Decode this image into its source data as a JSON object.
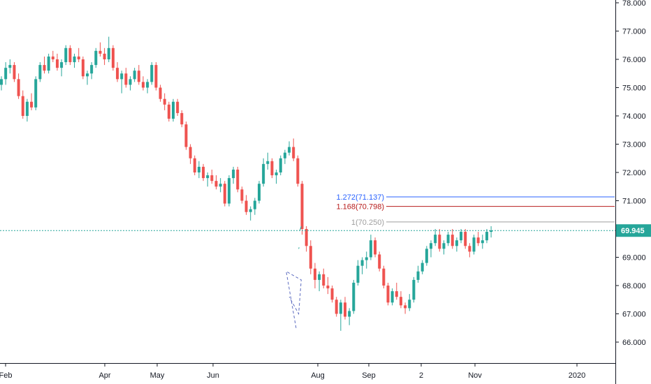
{
  "chart_data": {
    "type": "candlestick",
    "title": "",
    "xlabel": "",
    "ylabel": "",
    "ylim": [
      65.35,
      78.1
    ],
    "y_ticks": [
      "66.000",
      "67.000",
      "68.000",
      "69.000",
      "70.000",
      "71.000",
      "72.000",
      "73.000",
      "74.000",
      "75.000",
      "76.000",
      "77.000",
      "78.000"
    ],
    "x_ticks": [
      "Feb",
      "Apr",
      "May",
      "Jun",
      "Aug",
      "Sep",
      "2",
      "Nov",
      "2020"
    ],
    "current_price": "69.945",
    "current_price_value": 69.945,
    "grid": false,
    "colors": {
      "up": "#26a69a",
      "down": "#ef5350",
      "price_line": "#26a69a"
    },
    "fib_levels": [
      {
        "label": "1.272(71.137)",
        "value": 71.137,
        "color": "#2962ff"
      },
      {
        "label": "1.168(70.798)",
        "value": 70.798,
        "color": "#b71c1c"
      },
      {
        "label": "1(70.250)",
        "value": 70.25,
        "color": "#9e9e9e"
      }
    ],
    "pattern_lines": [
      {
        "style": "dashed",
        "points": [
          [
            68.6,
            66.5
          ],
          [
            66.3,
            68.5
          ],
          [
            69.8,
            68.2
          ],
          [
            69.2,
            67.0
          ],
          [
            67.0,
            67.6
          ]
        ]
      },
      {
        "style": "solid",
        "points": [
          [
            69.5,
            69.95
          ],
          [
            69.8,
            70.1
          ]
        ]
      },
      {
        "style": "solid",
        "points": [
          [
            69.2,
            69.3
          ],
          [
            69.3,
            69.35
          ]
        ]
      }
    ],
    "series": [
      {
        "values": [
          [
            75.1,
            75.4,
            74.9,
            75.3
          ],
          [
            75.3,
            75.9,
            75.1,
            75.7
          ],
          [
            75.7,
            76.0,
            75.5,
            75.8
          ],
          [
            75.8,
            75.9,
            75.2,
            75.3
          ],
          [
            75.3,
            75.5,
            74.6,
            74.7
          ],
          [
            74.7,
            74.9,
            73.9,
            74.0
          ],
          [
            74.0,
            74.6,
            73.8,
            74.5
          ],
          [
            74.5,
            74.8,
            74.2,
            74.3
          ],
          [
            74.3,
            75.4,
            74.2,
            75.3
          ],
          [
            75.3,
            75.9,
            75.2,
            75.8
          ],
          [
            75.8,
            76.1,
            75.5,
            75.6
          ],
          [
            75.6,
            76.2,
            75.5,
            76.1
          ],
          [
            76.1,
            76.3,
            75.9,
            76.0
          ],
          [
            76.0,
            76.2,
            75.6,
            75.7
          ],
          [
            75.7,
            76.0,
            75.4,
            75.9
          ],
          [
            75.9,
            76.5,
            75.8,
            76.4
          ],
          [
            76.4,
            76.5,
            75.8,
            75.9
          ],
          [
            75.9,
            76.2,
            75.7,
            76.1
          ],
          [
            76.1,
            76.4,
            75.9,
            76.0
          ],
          [
            76.0,
            76.1,
            75.3,
            75.4
          ],
          [
            75.4,
            75.6,
            75.1,
            75.5
          ],
          [
            75.5,
            75.9,
            75.3,
            75.8
          ],
          [
            75.8,
            76.4,
            75.7,
            76.3
          ],
          [
            76.3,
            76.6,
            76.1,
            76.2
          ],
          [
            76.2,
            76.4,
            75.8,
            76.0
          ],
          [
            76.0,
            76.8,
            75.9,
            76.4
          ],
          [
            76.4,
            76.5,
            75.6,
            75.7
          ],
          [
            75.7,
            75.9,
            75.2,
            75.3
          ],
          [
            75.3,
            75.6,
            74.8,
            75.5
          ],
          [
            75.5,
            75.7,
            75.0,
            75.1
          ],
          [
            75.1,
            75.4,
            74.9,
            75.3
          ],
          [
            75.3,
            75.7,
            75.2,
            75.6
          ],
          [
            75.6,
            75.8,
            75.1,
            75.2
          ],
          [
            75.2,
            75.4,
            74.9,
            75.0
          ],
          [
            75.0,
            75.3,
            74.8,
            75.2
          ],
          [
            75.2,
            75.9,
            75.1,
            75.8
          ],
          [
            75.8,
            75.9,
            74.9,
            75.0
          ],
          [
            75.0,
            75.1,
            74.5,
            74.6
          ],
          [
            74.6,
            74.8,
            74.2,
            74.4
          ],
          [
            74.4,
            74.5,
            73.8,
            73.9
          ],
          [
            73.9,
            74.6,
            73.8,
            74.5
          ],
          [
            74.5,
            74.6,
            74.0,
            74.1
          ],
          [
            74.1,
            74.2,
            73.6,
            73.7
          ],
          [
            73.7,
            73.8,
            72.8,
            72.9
          ],
          [
            72.9,
            73.0,
            72.3,
            72.5
          ],
          [
            72.5,
            72.6,
            71.9,
            72.0
          ],
          [
            72.0,
            72.4,
            71.8,
            72.2
          ],
          [
            72.2,
            72.3,
            71.7,
            71.8
          ],
          [
            71.8,
            72.0,
            71.5,
            71.9
          ],
          [
            71.9,
            72.1,
            71.6,
            71.7
          ],
          [
            71.7,
            71.9,
            71.4,
            71.5
          ],
          [
            71.5,
            71.8,
            71.3,
            71.6
          ],
          [
            71.6,
            71.7,
            70.8,
            70.9
          ],
          [
            70.9,
            71.9,
            70.8,
            71.8
          ],
          [
            71.8,
            72.2,
            71.6,
            72.1
          ],
          [
            72.1,
            72.2,
            71.3,
            71.4
          ],
          [
            71.4,
            71.5,
            70.9,
            71.0
          ],
          [
            71.0,
            71.2,
            70.5,
            70.6
          ],
          [
            70.6,
            70.8,
            70.3,
            70.7
          ],
          [
            70.7,
            71.1,
            70.5,
            71.0
          ],
          [
            71.0,
            71.7,
            70.9,
            71.6
          ],
          [
            71.6,
            72.5,
            71.5,
            72.3
          ],
          [
            72.3,
            72.7,
            72.1,
            72.4
          ],
          [
            72.4,
            72.5,
            71.8,
            71.9
          ],
          [
            71.9,
            72.1,
            71.6,
            72.0
          ],
          [
            72.0,
            72.6,
            71.9,
            72.5
          ],
          [
            72.5,
            72.8,
            72.3,
            72.7
          ],
          [
            72.7,
            73.1,
            72.6,
            72.9
          ],
          [
            72.9,
            73.2,
            72.4,
            72.5
          ],
          [
            72.5,
            72.6,
            71.5,
            71.6
          ],
          [
            71.6,
            71.7,
            69.8,
            70.0
          ],
          [
            70.0,
            70.1,
            69.2,
            69.4
          ],
          [
            69.4,
            69.6,
            68.4,
            68.6
          ],
          [
            68.6,
            68.8,
            67.9,
            68.2
          ],
          [
            68.2,
            68.5,
            67.8,
            68.4
          ],
          [
            68.4,
            68.6,
            67.9,
            68.0
          ],
          [
            68.0,
            68.3,
            67.7,
            67.9
          ],
          [
            67.9,
            68.0,
            67.4,
            67.5
          ],
          [
            67.5,
            67.6,
            66.9,
            67.0
          ],
          [
            67.0,
            67.5,
            66.4,
            67.4
          ],
          [
            67.4,
            67.6,
            66.8,
            66.9
          ],
          [
            66.9,
            67.2,
            66.6,
            67.1
          ],
          [
            67.1,
            68.2,
            67.0,
            68.1
          ],
          [
            68.1,
            68.9,
            68.0,
            68.7
          ],
          [
            68.7,
            69.0,
            68.4,
            68.9
          ],
          [
            68.9,
            69.2,
            68.6,
            69.0
          ],
          [
            69.0,
            69.8,
            68.9,
            69.6
          ],
          [
            69.6,
            69.7,
            69.0,
            69.1
          ],
          [
            69.1,
            69.2,
            68.5,
            68.6
          ],
          [
            68.6,
            68.7,
            67.9,
            68.0
          ],
          [
            68.0,
            68.1,
            67.3,
            67.4
          ],
          [
            67.4,
            67.9,
            67.3,
            67.8
          ],
          [
            67.8,
            68.1,
            67.5,
            67.6
          ],
          [
            67.6,
            67.8,
            67.2,
            67.3
          ],
          [
            67.3,
            67.4,
            67.0,
            67.2
          ],
          [
            67.2,
            67.7,
            67.1,
            67.5
          ],
          [
            67.5,
            68.3,
            67.4,
            68.2
          ],
          [
            68.2,
            68.7,
            68.1,
            68.5
          ],
          [
            68.5,
            68.9,
            68.4,
            68.8
          ],
          [
            68.8,
            69.4,
            68.7,
            69.3
          ],
          [
            69.3,
            69.6,
            69.0,
            69.5
          ],
          [
            69.5,
            70.0,
            69.4,
            69.8
          ],
          [
            69.8,
            70.0,
            69.2,
            69.3
          ],
          [
            69.3,
            69.6,
            69.1,
            69.5
          ],
          [
            69.5,
            69.9,
            69.4,
            69.8
          ],
          [
            69.8,
            70.0,
            69.3,
            69.4
          ],
          [
            69.4,
            69.7,
            69.2,
            69.6
          ],
          [
            69.6,
            70.0,
            69.5,
            69.9
          ],
          [
            69.9,
            70.0,
            69.3,
            69.4
          ],
          [
            69.4,
            69.5,
            69.0,
            69.2
          ],
          [
            69.2,
            69.8,
            69.1,
            69.7
          ],
          [
            69.7,
            69.9,
            69.4,
            69.5
          ],
          [
            69.5,
            69.8,
            69.3,
            69.6
          ],
          [
            69.6,
            70.0,
            69.5,
            69.9
          ],
          [
            69.9,
            70.1,
            69.7,
            69.95
          ]
        ]
      }
    ]
  }
}
